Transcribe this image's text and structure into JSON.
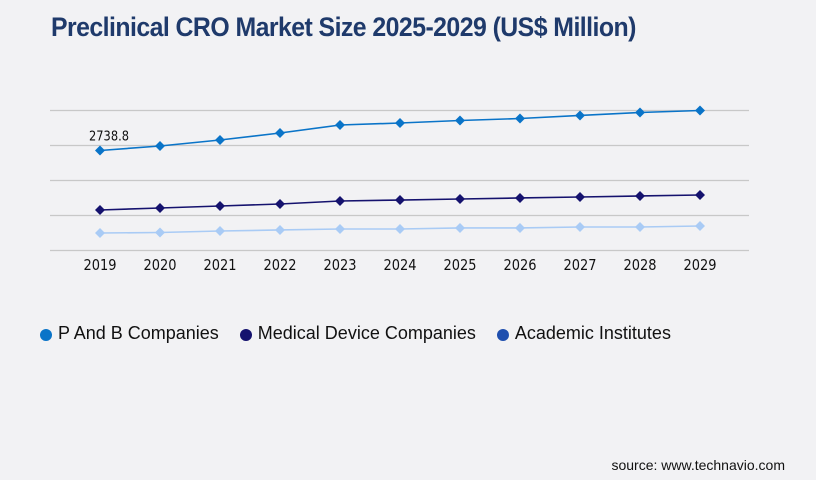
{
  "header": {
    "title": "Preclinical CRO Market Size 2025-2029 (US$ Million)"
  },
  "chart_data": {
    "type": "line",
    "title": "Preclinical CRO Market Size 2025-2029 (US$ Million)",
    "xlabel": "",
    "ylabel": "",
    "x": [
      "2019",
      "2020",
      "2021",
      "2022",
      "2023",
      "2024",
      "2025",
      "2026",
      "2027",
      "2028",
      "2029"
    ],
    "ylim": [
      0,
      3854
    ],
    "grid": true,
    "y_tick_labels_visible": false,
    "legend_position": "bottom-left",
    "series": [
      {
        "name": "P And B Companies",
        "color": "#0a74c8",
        "legend_color": "#0a74c8",
        "values": [
          2738.8,
          2863,
          3028,
          3221,
          3441,
          3496,
          3565,
          3620,
          3703,
          3785,
          3840
        ]
      },
      {
        "name": "Medical Device Companies",
        "color": "#15126e",
        "legend_color": "#15126e",
        "values": [
          1101,
          1156,
          1211,
          1266,
          1349,
          1376,
          1404,
          1432,
          1459,
          1487,
          1514
        ]
      },
      {
        "name": "Academic Institutes",
        "color": "#a9cbf5",
        "legend_color": "#1f4fae",
        "values": [
          468,
          482,
          523,
          551,
          578,
          578,
          606,
          606,
          633,
          633,
          661
        ]
      }
    ],
    "annotations": [
      {
        "series": "P And B Companies",
        "x": "2019",
        "text": "2738.8"
      }
    ]
  },
  "footer": {
    "source": "source: www.technavio.com"
  }
}
